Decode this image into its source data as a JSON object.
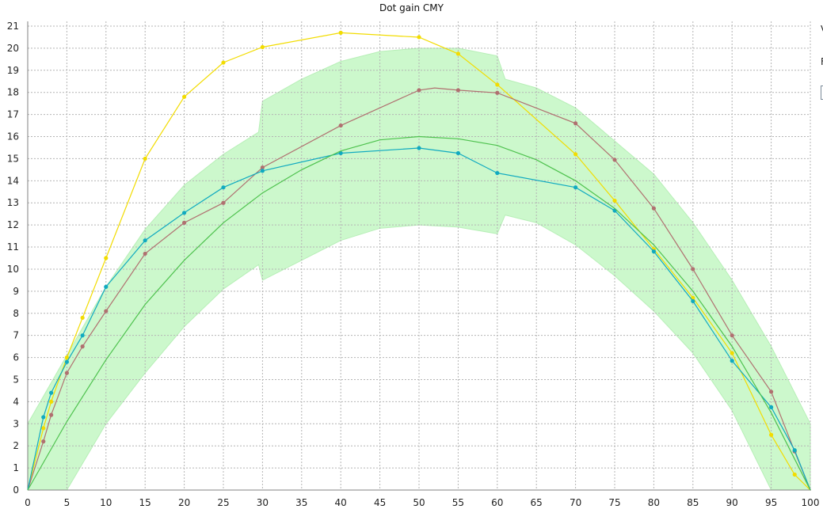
{
  "chart_data": {
    "type": "line",
    "title": "Dot gain CMY",
    "xlabel": "",
    "ylabel": "",
    "xlim": [
      0,
      100
    ],
    "ylim": [
      0,
      21
    ],
    "xticks": [
      0,
      5,
      10,
      15,
      20,
      25,
      30,
      35,
      40,
      45,
      50,
      55,
      60,
      65,
      70,
      75,
      80,
      85,
      90,
      95,
      100
    ],
    "yticks": [
      0,
      1,
      2,
      3,
      4,
      5,
      6,
      7,
      8,
      9,
      10,
      11,
      12,
      13,
      14,
      15,
      16,
      17,
      18,
      19,
      20,
      21
    ],
    "grid": true,
    "tolerance_band": {
      "color": "#ccf8cc",
      "edge_color": "#b7efb7",
      "upper": [
        [
          0,
          3
        ],
        [
          5,
          6.1
        ],
        [
          10,
          9.2
        ],
        [
          15,
          11.8
        ],
        [
          20,
          13.8
        ],
        [
          25,
          15.2
        ],
        [
          29.5,
          16.2
        ],
        [
          30,
          17.6
        ],
        [
          35,
          18.6
        ],
        [
          40,
          19.4
        ],
        [
          45,
          19.85
        ],
        [
          50,
          20.0
        ],
        [
          55,
          20.0
        ],
        [
          60,
          19.65
        ],
        [
          61,
          18.6
        ],
        [
          65,
          18.2
        ],
        [
          70,
          17.3
        ],
        [
          75,
          15.8
        ],
        [
          80,
          14.3
        ],
        [
          85,
          12.1
        ],
        [
          90,
          9.5
        ],
        [
          95,
          6.5
        ],
        [
          100,
          3.0
        ]
      ],
      "lower": [
        [
          0,
          0
        ],
        [
          5,
          0
        ],
        [
          10,
          3.0
        ],
        [
          15,
          5.3
        ],
        [
          20,
          7.4
        ],
        [
          25,
          9.1
        ],
        [
          29.5,
          10.2
        ],
        [
          30,
          9.5
        ],
        [
          35,
          10.4
        ],
        [
          40,
          11.3
        ],
        [
          45,
          11.85
        ],
        [
          50,
          12.0
        ],
        [
          55,
          11.9
        ],
        [
          60,
          11.6
        ],
        [
          61,
          12.45
        ],
        [
          65,
          12.1
        ],
        [
          70,
          11.1
        ],
        [
          75,
          9.7
        ],
        [
          80,
          8.1
        ],
        [
          85,
          6.2
        ],
        [
          90,
          3.6
        ],
        [
          95,
          0
        ],
        [
          100,
          0
        ]
      ]
    },
    "series": [
      {
        "color": "#f2dc00",
        "x": [
          0,
          2,
          3,
          5,
          7,
          10,
          15,
          20,
          25,
          30,
          40,
          50,
          55,
          60,
          70,
          75,
          80,
          85,
          90,
          95,
          98,
          100
        ],
        "y": [
          0,
          2.8,
          4.0,
          6.0,
          7.8,
          10.5,
          15.0,
          17.8,
          19.35,
          20.05,
          20.7,
          20.5,
          19.75,
          18.35,
          15.2,
          13.1,
          10.9,
          8.7,
          6.2,
          2.5,
          0.7,
          0
        ],
        "markers": [
          2,
          3,
          5,
          7,
          10,
          15,
          20,
          25,
          30,
          40,
          50,
          55,
          60,
          70,
          75,
          80,
          85,
          90,
          95,
          98
        ]
      },
      {
        "color": "#b07070",
        "x": [
          0,
          2,
          3,
          5,
          7,
          10,
          15,
          20,
          25,
          30,
          40,
          50,
          52,
          55,
          60,
          70,
          75,
          80,
          85,
          90,
          95,
          98,
          100
        ],
        "y": [
          0,
          2.2,
          3.4,
          5.3,
          6.5,
          8.1,
          10.7,
          12.1,
          13.0,
          14.6,
          16.5,
          18.1,
          18.2,
          18.1,
          17.98,
          16.6,
          14.95,
          12.75,
          10.0,
          7.0,
          4.45,
          1.75,
          0
        ],
        "markers": [
          2,
          3,
          5,
          7,
          10,
          15,
          20,
          25,
          30,
          40,
          50,
          55,
          60,
          70,
          75,
          80,
          85,
          90,
          95,
          98
        ]
      },
      {
        "color": "#10aac0",
        "x": [
          0,
          2,
          3,
          5,
          7,
          10,
          15,
          20,
          25,
          30,
          40,
          50,
          55,
          60,
          70,
          75,
          80,
          85,
          90,
          95,
          98,
          100
        ],
        "y": [
          0,
          3.3,
          4.4,
          5.8,
          7.0,
          9.2,
          11.3,
          12.55,
          13.7,
          14.45,
          15.25,
          15.48,
          15.25,
          14.35,
          13.7,
          12.65,
          10.8,
          8.55,
          5.85,
          3.75,
          1.8,
          0
        ],
        "markers": [
          2,
          3,
          5,
          7,
          10,
          15,
          20,
          25,
          30,
          40,
          50,
          55,
          60,
          70,
          75,
          80,
          85,
          90,
          95,
          98
        ]
      },
      {
        "color": "#4ec24e",
        "x": [
          0,
          5,
          10,
          15,
          20,
          25,
          30,
          35,
          40,
          45,
          50,
          55,
          60,
          65,
          70,
          75,
          80,
          85,
          90,
          95,
          100
        ],
        "y": [
          0,
          3.1,
          5.9,
          8.4,
          10.4,
          12.1,
          13.45,
          14.5,
          15.35,
          15.85,
          16.0,
          15.9,
          15.6,
          14.95,
          14.0,
          12.75,
          11.1,
          9.0,
          6.5,
          3.5,
          0
        ],
        "markers": []
      }
    ]
  },
  "side_panel": {
    "fragments": [
      "V",
      "F"
    ]
  }
}
